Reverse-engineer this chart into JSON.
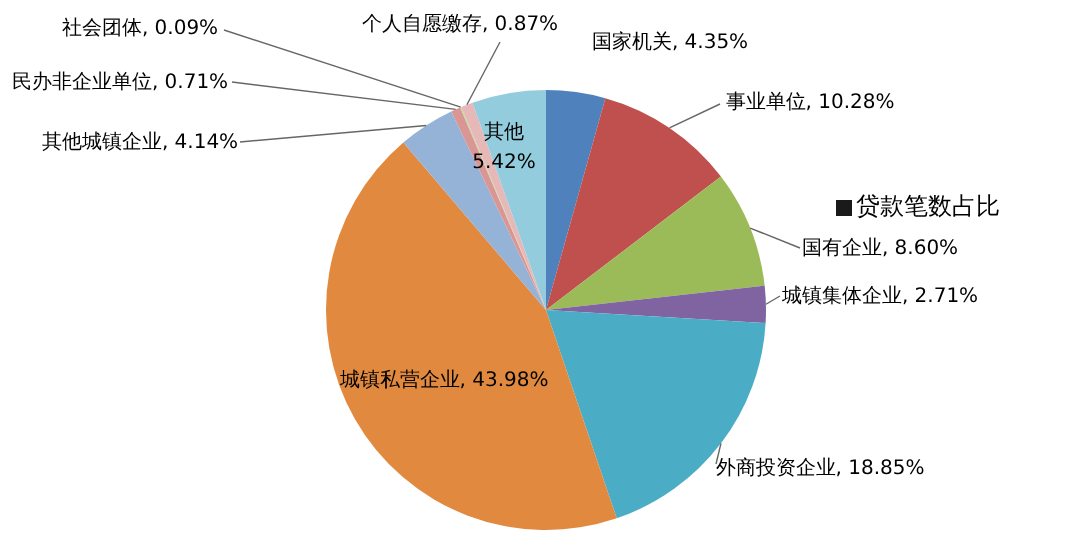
{
  "chart_data": {
    "type": "pie",
    "categories": [
      "国家机关",
      "事业单位",
      "国有企业",
      "城镇集体企业",
      "外商投资企业",
      "城镇私营企业",
      "其他城镇企业",
      "民办非企业单位",
      "社会团体",
      "个人自愿缴存",
      "其他"
    ],
    "series": [
      {
        "name": "贷款笔数占比",
        "values": [
          4.35,
          10.28,
          8.6,
          2.71,
          18.85,
          43.98,
          4.14,
          0.71,
          0.09,
          0.87,
          5.42
        ],
        "value_labels": [
          "4.35%",
          "10.28%",
          "8.60%",
          "2.71%",
          "18.85%",
          "43.98%",
          "4.14%",
          "0.71%",
          "0.09%",
          "0.87%",
          "5.42%"
        ]
      }
    ],
    "colors": [
      "#4f81bd",
      "#c0504d",
      "#9bbb59",
      "#8064a2",
      "#4bacc6",
      "#e0893f",
      "#95b3d7",
      "#d99694",
      "#c3d69b",
      "#e6b9b8",
      "#93cddd"
    ],
    "legend": "right"
  }
}
